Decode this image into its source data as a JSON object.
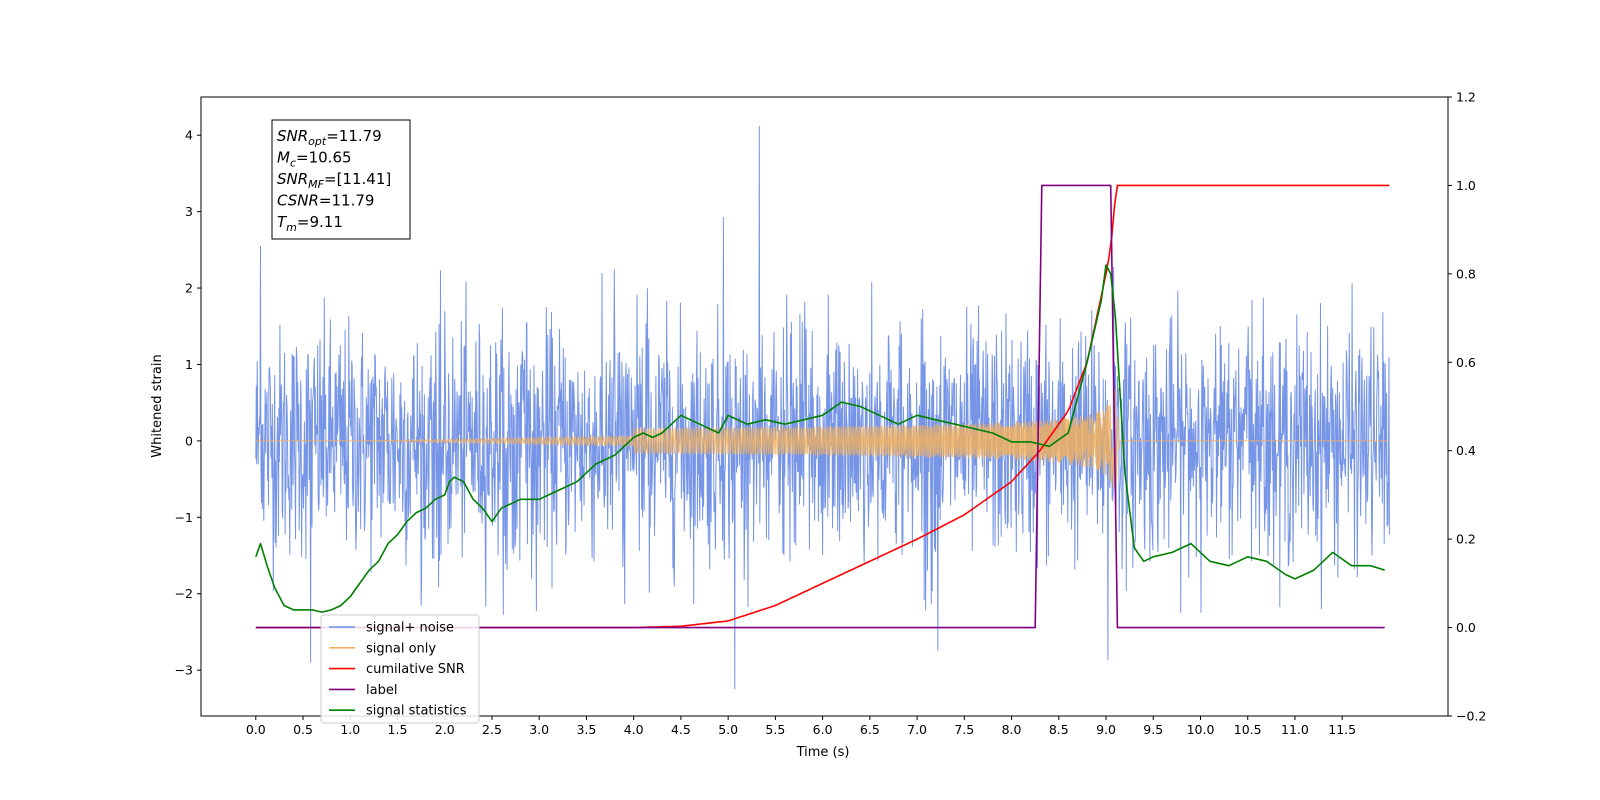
{
  "chart_data": {
    "type": "line",
    "xlabel": "Time (s)",
    "ylabel": "Whitened strain",
    "xlim": [
      -0.58,
      12.62
    ],
    "ylim": [
      -3.6,
      4.5
    ],
    "y2lim": [
      -0.2,
      1.2
    ],
    "xticks": [
      "0.0",
      "0.5",
      "1.0",
      "1.5",
      "2.0",
      "2.5",
      "3.0",
      "3.5",
      "4.0",
      "4.5",
      "5.0",
      "5.5",
      "6.0",
      "6.5",
      "7.0",
      "7.5",
      "8.0",
      "8.5",
      "9.0",
      "9.5",
      "10.0",
      "10.5",
      "11.0",
      "11.5"
    ],
    "yticks": [
      "−3",
      "−2",
      "−1",
      "0",
      "1",
      "2",
      "3",
      "4"
    ],
    "y2ticks": [
      "−0.2",
      "0.0",
      "0.2",
      "0.4",
      "0.6",
      "0.8",
      "1.0",
      "1.2"
    ],
    "legend_position": "lower-left",
    "annotation": [
      {
        "base": "SNR",
        "sub": "opt",
        "rest": "=11.79"
      },
      {
        "base": "M",
        "sub": "c",
        "rest": "=10.65"
      },
      {
        "base": "SNR",
        "sub": "MF",
        "rest": "=[11.41]"
      },
      {
        "base": "CSNR",
        "sub": "",
        "rest": "=11.79"
      },
      {
        "base": "T",
        "sub": "m",
        "rest": "=9.11"
      }
    ],
    "series": [
      {
        "name": "signal+ noise",
        "axis": "left",
        "color": "#6f8fe6",
        "description_range": [
          0,
          12
        ],
        "typical_amplitude": 1.5,
        "peak_points": [
          [
            0.05,
            2.55
          ],
          [
            5.33,
            4.12
          ],
          [
            5.07,
            -3.25
          ],
          [
            9.02,
            -2.87
          ],
          [
            4.95,
            2.93
          ],
          [
            9.08,
            2.28
          ],
          [
            0.58,
            -2.9
          ],
          [
            7.22,
            -2.75
          ]
        ]
      },
      {
        "name": "signal only",
        "axis": "left",
        "color": "#f0b060",
        "chirp_start": 4.0,
        "merger_time": 9.1,
        "peak_amplitude": 0.7
      },
      {
        "name": "cumilative SNR",
        "axis": "right",
        "color": "#ff0000",
        "x": [
          0,
          4.0,
          4.5,
          5.0,
          5.5,
          6.0,
          6.5,
          7.0,
          7.5,
          8.0,
          8.3,
          8.6,
          8.8,
          9.0,
          9.05,
          9.11,
          12.0
        ],
        "y": [
          0,
          0,
          0.003,
          0.015,
          0.05,
          0.1,
          0.15,
          0.2,
          0.255,
          0.33,
          0.4,
          0.49,
          0.6,
          0.8,
          0.86,
          1.0,
          1.0
        ]
      },
      {
        "name": "label",
        "axis": "right",
        "color": "#800080",
        "x": [
          0,
          8.25,
          8.32,
          9.05,
          9.12,
          11.95
        ],
        "y": [
          0,
          0,
          1,
          1,
          0,
          0
        ]
      },
      {
        "name": "signal statistics",
        "axis": "right",
        "color": "#008000",
        "x": [
          0,
          0.05,
          0.12,
          0.2,
          0.3,
          0.4,
          0.5,
          0.6,
          0.7,
          0.8,
          0.9,
          1.0,
          1.1,
          1.2,
          1.3,
          1.4,
          1.5,
          1.6,
          1.7,
          1.8,
          1.9,
          2.0,
          2.05,
          2.1,
          2.2,
          2.3,
          2.4,
          2.5,
          2.6,
          2.7,
          2.8,
          2.9,
          3.0,
          3.1,
          3.2,
          3.3,
          3.4,
          3.5,
          3.6,
          3.7,
          3.8,
          3.9,
          4.0,
          4.1,
          4.2,
          4.3,
          4.4,
          4.5,
          4.6,
          4.7,
          4.8,
          4.9,
          5.0,
          5.2,
          5.4,
          5.6,
          5.8,
          6.0,
          6.2,
          6.4,
          6.6,
          6.8,
          7.0,
          7.2,
          7.4,
          7.6,
          7.8,
          8.0,
          8.2,
          8.4,
          8.6,
          8.8,
          8.95,
          9.0,
          9.05,
          9.1,
          9.2,
          9.3,
          9.4,
          9.5,
          9.7,
          9.9,
          10.1,
          10.3,
          10.5,
          10.7,
          10.9,
          11.0,
          11.2,
          11.4,
          11.6,
          11.8,
          11.95
        ],
        "y": [
          0.16,
          0.19,
          0.14,
          0.09,
          0.05,
          0.04,
          0.04,
          0.04,
          0.035,
          0.04,
          0.05,
          0.07,
          0.1,
          0.13,
          0.15,
          0.19,
          0.21,
          0.24,
          0.26,
          0.27,
          0.29,
          0.3,
          0.33,
          0.34,
          0.33,
          0.29,
          0.27,
          0.24,
          0.27,
          0.28,
          0.29,
          0.29,
          0.29,
          0.3,
          0.31,
          0.32,
          0.33,
          0.35,
          0.37,
          0.38,
          0.39,
          0.41,
          0.43,
          0.44,
          0.43,
          0.44,
          0.46,
          0.48,
          0.47,
          0.46,
          0.45,
          0.44,
          0.48,
          0.46,
          0.47,
          0.46,
          0.47,
          0.48,
          0.51,
          0.5,
          0.48,
          0.46,
          0.48,
          0.47,
          0.46,
          0.45,
          0.44,
          0.42,
          0.42,
          0.41,
          0.44,
          0.6,
          0.74,
          0.82,
          0.8,
          0.7,
          0.35,
          0.18,
          0.15,
          0.16,
          0.17,
          0.19,
          0.15,
          0.14,
          0.16,
          0.15,
          0.12,
          0.11,
          0.13,
          0.17,
          0.14,
          0.14,
          0.13
        ]
      }
    ]
  }
}
